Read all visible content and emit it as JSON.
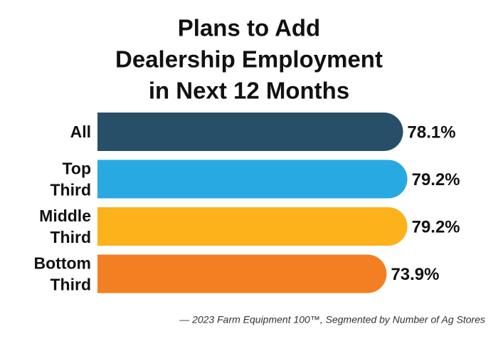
{
  "chart_data": {
    "type": "bar",
    "title": [
      "Plans to Add",
      "Dealership Employment",
      "in Next 12 Months"
    ],
    "categories": [
      [
        "All"
      ],
      [
        "Top",
        "Third"
      ],
      [
        "Middle",
        "Third"
      ],
      [
        "Bottom",
        "Third"
      ]
    ],
    "values": [
      78.1,
      79.2,
      79.2,
      73.9
    ],
    "value_labels": [
      "78.1%",
      "79.2%",
      "79.2%",
      "73.9%"
    ],
    "colors": [
      "#274f68",
      "#29a9e1",
      "#fbb21b",
      "#f47f22"
    ],
    "source": "— 2023 Farm Equipment 100™, Segmented by Number of Ag Stores"
  }
}
